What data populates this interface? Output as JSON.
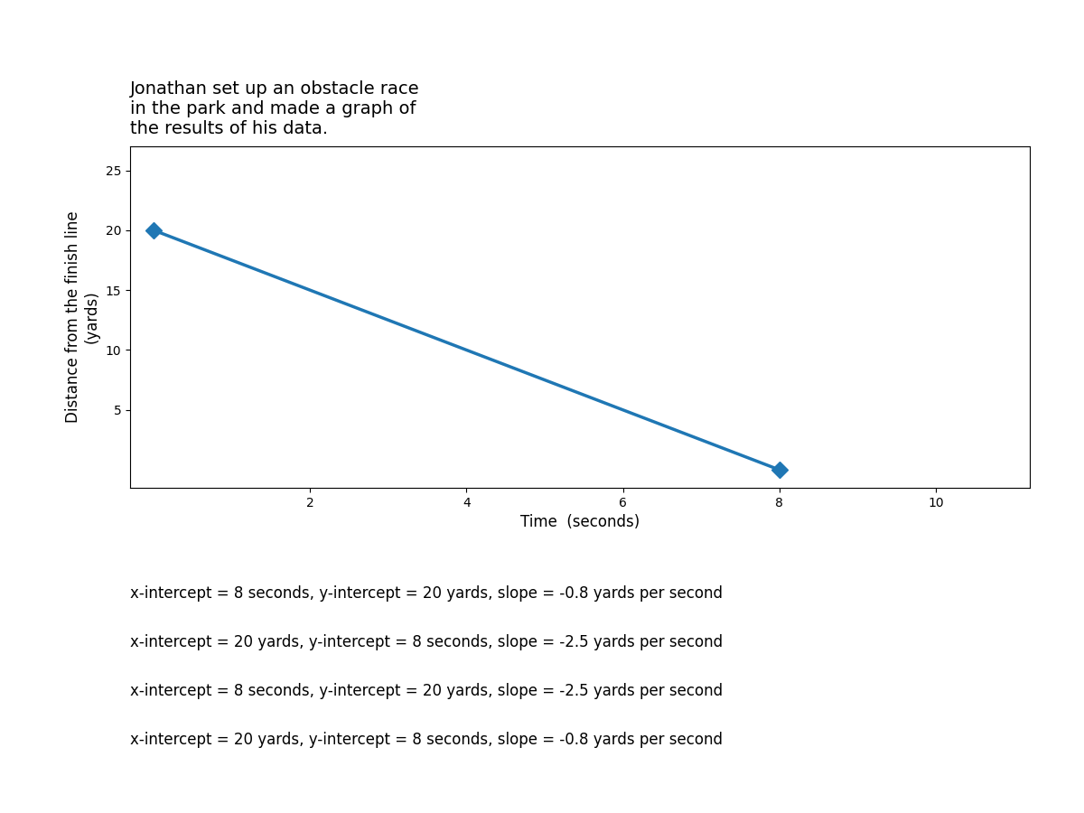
{
  "chart_data": {
    "type": "line",
    "title": "Jonathan set up an obstacle race\nin the park and made a graph of\nthe results of his data.",
    "xlabel": "Time  (seconds)",
    "ylabel": "Distance from the finish line\n(yards)",
    "x": [
      0,
      8
    ],
    "values": [
      20,
      0
    ],
    "marker": "diamond",
    "xlim": [
      -0.3,
      11.2
    ],
    "ylim": [
      -1.5,
      27
    ],
    "xticks": [
      2,
      4,
      6,
      8,
      10
    ],
    "yticks": [
      5,
      10,
      15,
      20,
      25
    ],
    "grid": false,
    "annotations": [
      "x-intercept = 8 seconds, y-intercept = 20 yards, slope = -0.8 yards per second",
      "x-intercept = 20 yards, y-intercept = 8 seconds, slope = -2.5 yards per second",
      "x-intercept = 8 seconds, y-intercept = 20 yards, slope = -2.5 yards per second",
      "x-intercept = 20 yards, y-intercept = 8 seconds, slope = -0.8 yards per second"
    ]
  }
}
